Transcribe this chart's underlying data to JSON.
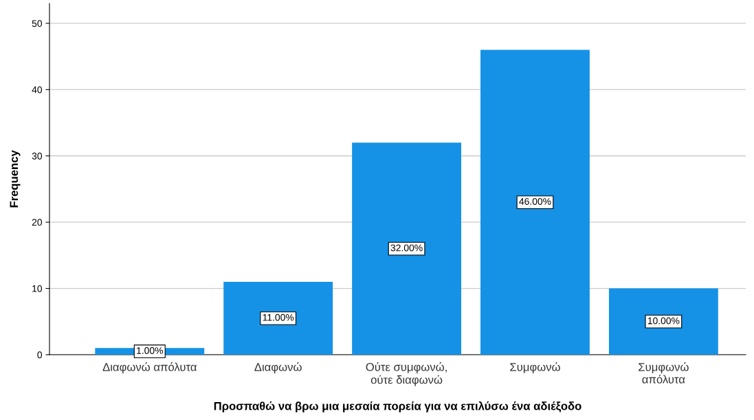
{
  "chart_data": {
    "type": "bar",
    "xlabel": "Προσπαθώ να βρω μια μεσαία πορεία για να επιλύσω ένα αδιέξοδο",
    "ylabel": "Frequency",
    "categories": [
      "Διαφωνώ απόλυτα",
      "Διαφωνώ",
      "Ούτε συμφωνώ,\nούτε διαφωνώ",
      "Συμφωνώ",
      "Συμφωνώ\nαπόλυτα"
    ],
    "values": [
      1,
      11,
      32,
      46,
      10
    ],
    "value_labels": [
      "1.00%",
      "11.00%",
      "32.00%",
      "46.00%",
      "10.00%"
    ],
    "color": "#1592e6",
    "ylim": [
      0,
      53
    ],
    "yticks": [
      0,
      10,
      20,
      30,
      40,
      50
    ],
    "grid": "y",
    "legend": false
  }
}
